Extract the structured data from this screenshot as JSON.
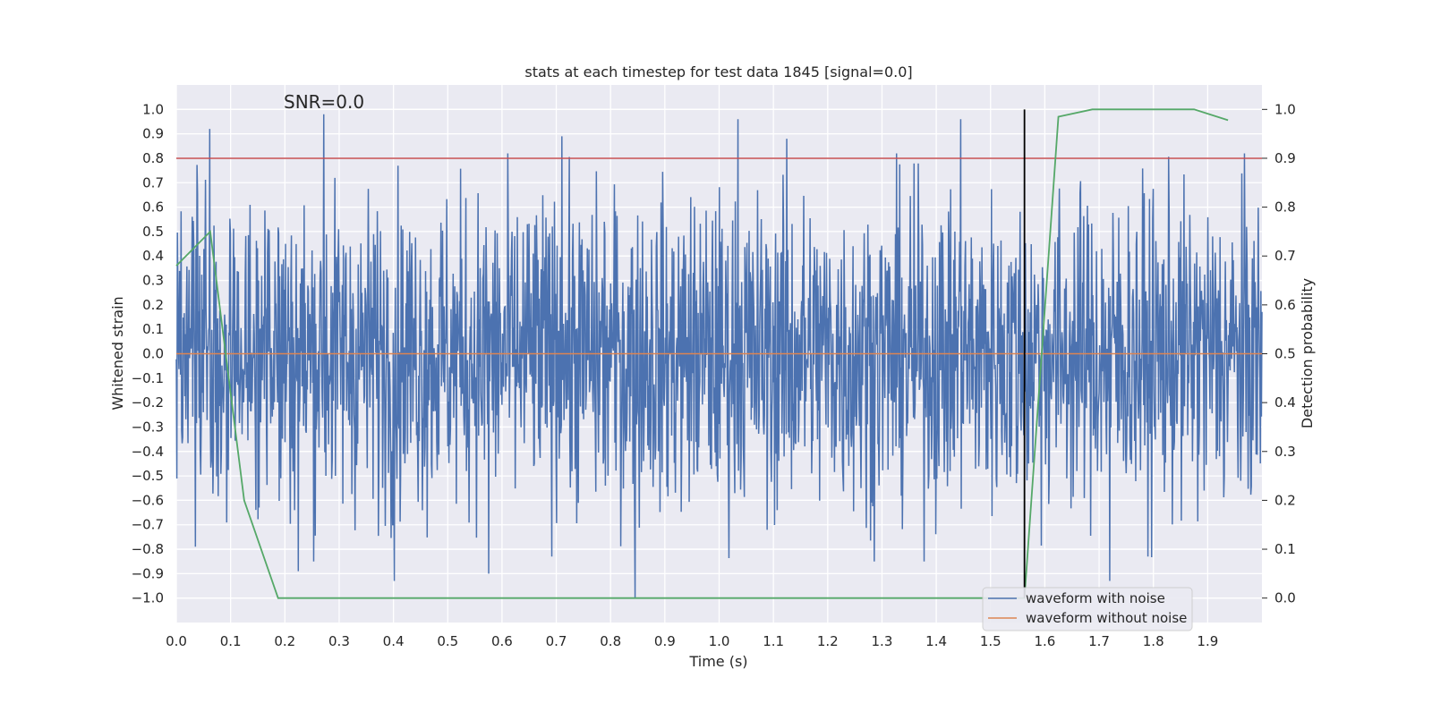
{
  "chart_data": {
    "type": "line",
    "title": "stats at each timestep for test data 1845 [signal=0.0]",
    "annotation": "SNR=0.0",
    "xlabel": "Time (s)",
    "ylabel_left": "Whitened strain",
    "ylabel_right": "Detection probability",
    "xlim": [
      0.0,
      2.0
    ],
    "ylim_left": [
      -1.1,
      1.1
    ],
    "ylim_right": [
      -0.05,
      1.05
    ],
    "x_ticks": [
      "0.0",
      "0.1",
      "0.2",
      "0.3",
      "0.4",
      "0.5",
      "0.6",
      "0.7",
      "0.8",
      "0.9",
      "1.0",
      "1.1",
      "1.2",
      "1.3",
      "1.4",
      "1.5",
      "1.6",
      "1.7",
      "1.8",
      "1.9"
    ],
    "y_ticks_left": [
      "1.0",
      "0.9",
      "0.8",
      "0.7",
      "0.6",
      "0.5",
      "0.4",
      "0.3",
      "0.2",
      "0.1",
      "0.0",
      "−0.1",
      "−0.2",
      "−0.3",
      "−0.4",
      "−0.5",
      "−0.6",
      "−0.7",
      "−0.8",
      "−0.9",
      "−1.0"
    ],
    "y_ticks_right": [
      "1.0",
      "0.9",
      "0.8",
      "0.7",
      "0.6",
      "0.5",
      "0.4",
      "0.3",
      "0.2",
      "0.1",
      "0.0"
    ],
    "grid": true,
    "legend_position": "lower-right",
    "series": [
      {
        "name": "waveform with noise",
        "axis": "left",
        "color": "#4c72b0",
        "kind": "noise",
        "x_range": [
          0.0,
          2.0
        ],
        "n_points": 2048,
        "peaks": [
          {
            "x": 0.062,
            "y": 0.92
          },
          {
            "x": 0.272,
            "y": 0.98
          },
          {
            "x": 0.71,
            "y": 0.89
          },
          {
            "x": 1.035,
            "y": 0.96
          },
          {
            "x": 1.125,
            "y": 0.88
          },
          {
            "x": 1.445,
            "y": 0.96
          },
          {
            "x": 0.845,
            "y": -1.0
          },
          {
            "x": 0.402,
            "y": -0.93
          },
          {
            "x": 1.72,
            "y": -0.93
          },
          {
            "x": 0.225,
            "y": -0.89
          },
          {
            "x": 0.575,
            "y": -0.9
          },
          {
            "x": 0.035,
            "y": -0.79
          },
          {
            "x": 1.79,
            "y": -0.83
          }
        ]
      },
      {
        "name": "waveform without noise",
        "axis": "left",
        "color": "#dd8452",
        "x": [
          0.0,
          2.0
        ],
        "y": [
          0.0,
          0.0
        ]
      },
      {
        "name": "detection probability",
        "axis": "right",
        "color": "#55a868",
        "x": [
          0.0,
          0.0625,
          0.125,
          0.1875,
          0.25,
          0.3125,
          0.375,
          0.4375,
          0.5,
          0.5625,
          0.625,
          0.6875,
          0.75,
          0.8125,
          0.875,
          0.9375,
          1.0,
          1.0625,
          1.125,
          1.1875,
          1.25,
          1.3125,
          1.375,
          1.4375,
          1.5,
          1.5625,
          1.625,
          1.6875,
          1.75,
          1.8125,
          1.875,
          1.9375
        ],
        "y": [
          0.68,
          0.75,
          0.2,
          0.0,
          0.0,
          0.0,
          0.0,
          0.0,
          0.0,
          0.0,
          0.0,
          0.0,
          0.0,
          0.0,
          0.0,
          0.0,
          0.0,
          0.0,
          0.0,
          0.0,
          0.0,
          0.0,
          0.0,
          0.0,
          0.0,
          0.0,
          0.985,
          1.0,
          1.0,
          1.0,
          1.0,
          0.978
        ]
      }
    ],
    "threshold_line": {
      "axis": "right",
      "y": 0.9,
      "color": "#c44e52"
    },
    "marker_line": {
      "x": 1.5625,
      "color": "#000000",
      "y_range_right": [
        0.0,
        1.0
      ]
    }
  }
}
